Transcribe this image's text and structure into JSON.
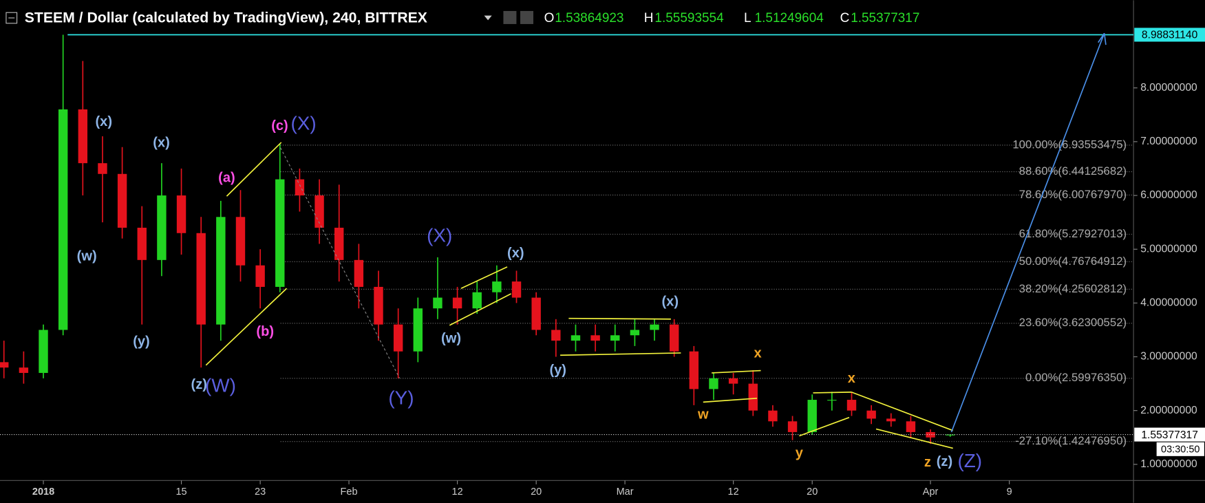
{
  "chart_data": {
    "type": "candlestick",
    "title": "STEEM / Dollar (calculated by TradingView), 240, BITTREX",
    "ohlc_labels": [
      "O",
      "H",
      "L",
      "C"
    ],
    "x": [
      -4,
      -2,
      0,
      2,
      4,
      6,
      8,
      10,
      12,
      14,
      16,
      18,
      20,
      22,
      24,
      26,
      28,
      30,
      32,
      34,
      36,
      38,
      40,
      42,
      44,
      46,
      48,
      50,
      52,
      54,
      56,
      58,
      60,
      62,
      64,
      66,
      68,
      70,
      72,
      74,
      76,
      78,
      80,
      82,
      84,
      86,
      88,
      90,
      92
    ],
    "open": [
      2.9,
      2.8,
      2.7,
      3.5,
      7.6,
      6.6,
      6.4,
      5.4,
      4.8,
      6.0,
      5.3,
      3.6,
      5.6,
      4.7,
      4.3,
      6.3,
      6.0,
      5.4,
      4.8,
      4.3,
      3.6,
      3.1,
      3.9,
      4.1,
      3.9,
      4.2,
      4.4,
      4.1,
      3.5,
      3.3,
      3.4,
      3.3,
      3.4,
      3.5,
      3.6,
      3.1,
      2.4,
      2.6,
      2.5,
      2.0,
      1.8,
      1.6,
      2.2,
      2.2,
      2.0,
      1.85,
      1.8,
      1.6,
      1.53864923
    ],
    "high": [
      3.3,
      3.1,
      3.6,
      8.9883114,
      8.5,
      7.1,
      6.9,
      5.8,
      6.6,
      6.5,
      5.6,
      5.9,
      6.1,
      5.0,
      6.95,
      6.5,
      6.3,
      6.2,
      5.1,
      4.6,
      3.9,
      4.1,
      4.85,
      4.3,
      4.4,
      4.7,
      4.6,
      4.2,
      3.7,
      3.6,
      3.6,
      3.6,
      3.7,
      3.7,
      3.7,
      3.2,
      2.7,
      2.7,
      2.75,
      2.1,
      1.9,
      2.3,
      2.35,
      2.35,
      2.1,
      1.95,
      1.9,
      1.65,
      1.55593554
    ],
    "low": [
      2.6,
      2.5,
      2.6,
      3.4,
      6.0,
      5.5,
      5.2,
      3.6,
      4.5,
      4.9,
      2.8,
      3.3,
      4.4,
      3.9,
      4.2,
      5.7,
      5.1,
      4.4,
      3.9,
      3.3,
      2.6,
      2.9,
      3.7,
      3.6,
      3.8,
      4.0,
      4.0,
      3.4,
      3.0,
      3.1,
      3.1,
      3.1,
      3.2,
      3.3,
      3.0,
      2.1,
      2.2,
      2.3,
      1.9,
      1.7,
      1.45,
      1.55,
      2.0,
      1.9,
      1.75,
      1.7,
      1.5,
      1.38,
      1.51249604
    ],
    "close": [
      2.8,
      2.7,
      3.5,
      7.6,
      6.6,
      6.4,
      5.4,
      4.8,
      6.0,
      5.3,
      3.6,
      5.6,
      4.7,
      4.3,
      6.3,
      6.0,
      5.4,
      4.8,
      4.3,
      3.6,
      3.1,
      3.9,
      4.1,
      3.9,
      4.2,
      4.4,
      4.1,
      3.5,
      3.3,
      3.4,
      3.3,
      3.4,
      3.5,
      3.6,
      3.1,
      2.4,
      2.6,
      2.5,
      2.0,
      1.8,
      1.6,
      2.2,
      2.2,
      2.0,
      1.85,
      1.8,
      1.6,
      1.5,
      1.55377317
    ],
    "up_color": "#22d422",
    "down_color": "#e5131d",
    "xlim": [
      -4.4,
      110.6
    ],
    "ylim": [
      0.7,
      9.63
    ],
    "xticks": [
      {
        "value": 0,
        "label": "2018"
      },
      {
        "value": 14,
        "label": "15"
      },
      {
        "value": 22,
        "label": "23"
      },
      {
        "value": 31,
        "label": "Feb"
      },
      {
        "value": 42,
        "label": "12"
      },
      {
        "value": 50,
        "label": "20"
      },
      {
        "value": 59,
        "label": "Mar"
      },
      {
        "value": 70,
        "label": "12"
      },
      {
        "value": 78,
        "label": "20"
      },
      {
        "value": 90,
        "label": "Apr"
      },
      {
        "value": 98,
        "label": "9"
      }
    ],
    "yticks": [
      {
        "value": 1,
        "label": "1.00000000"
      },
      {
        "value": 2,
        "label": "2.00000000"
      },
      {
        "value": 3,
        "label": "3.00000000"
      },
      {
        "value": 4,
        "label": "4.00000000"
      },
      {
        "value": 5,
        "label": "5.00000000"
      },
      {
        "value": 6,
        "label": "6.00000000"
      },
      {
        "value": 7,
        "label": "7.00000000"
      },
      {
        "value": 8,
        "label": "8.00000000"
      }
    ],
    "grid": false,
    "reference_line": {
      "value": 8.9883114,
      "label": "8.98831140",
      "color": "#2ee6e6"
    },
    "countdown": "03:30:50",
    "fib_levels": [
      {
        "value": 6.93553475,
        "label": "100.00%(6.93553475)"
      },
      {
        "value": 6.44125682,
        "label": "88.60%(6.44125682)"
      },
      {
        "value": 6.0076797,
        "label": "78.60%(6.00767970)"
      },
      {
        "value": 5.27927013,
        "label": "61.80%(5.27927013)"
      },
      {
        "value": 4.76764912,
        "label": "50.00%(4.76764912)"
      },
      {
        "value": 4.25602812,
        "label": "38.20%(4.25602812)"
      },
      {
        "value": 3.62300552,
        "label": "23.60%(3.62300552)"
      },
      {
        "value": 2.5997635,
        "label": "0.00%(2.59976350)"
      },
      {
        "value": 1.4247695,
        "label": "-27.10%(1.42476950)"
      }
    ],
    "annotations": [
      {
        "text": "(x)",
        "color": "#8fb6e8"
      },
      {
        "text": "(x)",
        "color": "#8fb6e8"
      },
      {
        "text": "(w)",
        "color": "#8fb6e8"
      },
      {
        "text": "(y)",
        "color": "#8fb6e8"
      },
      {
        "text": "(z)",
        "color": "#8fb6e8"
      },
      {
        "text": "(W)",
        "color": "#5b5fe0"
      },
      {
        "text": "(a)",
        "color": "#ff4fe6"
      },
      {
        "text": "(b)",
        "color": "#ff4fe6"
      },
      {
        "text": "(c)",
        "color": "#ff4fe6"
      },
      {
        "text": "(X)",
        "color": "#5b5fe0"
      },
      {
        "text": "(Y)",
        "color": "#5b5fe0"
      },
      {
        "text": "(X)",
        "color": "#5b5fe0"
      },
      {
        "text": "(x)",
        "color": "#8fb6e8"
      },
      {
        "text": "(w)",
        "color": "#8fb6e8"
      },
      {
        "text": "(y)",
        "color": "#8fb6e8"
      },
      {
        "text": "(x)",
        "color": "#8fb6e8"
      },
      {
        "text": "x",
        "color": "#f0a424"
      },
      {
        "text": "w",
        "color": "#f0a424"
      },
      {
        "text": "y",
        "color": "#f0a424"
      },
      {
        "text": "x",
        "color": "#f0a424"
      },
      {
        "text": "z",
        "color": "#f0a424"
      },
      {
        "text": "(z)",
        "color": "#8fb6e8"
      },
      {
        "text": "(Z)",
        "color": "#5b5fe0"
      }
    ]
  }
}
